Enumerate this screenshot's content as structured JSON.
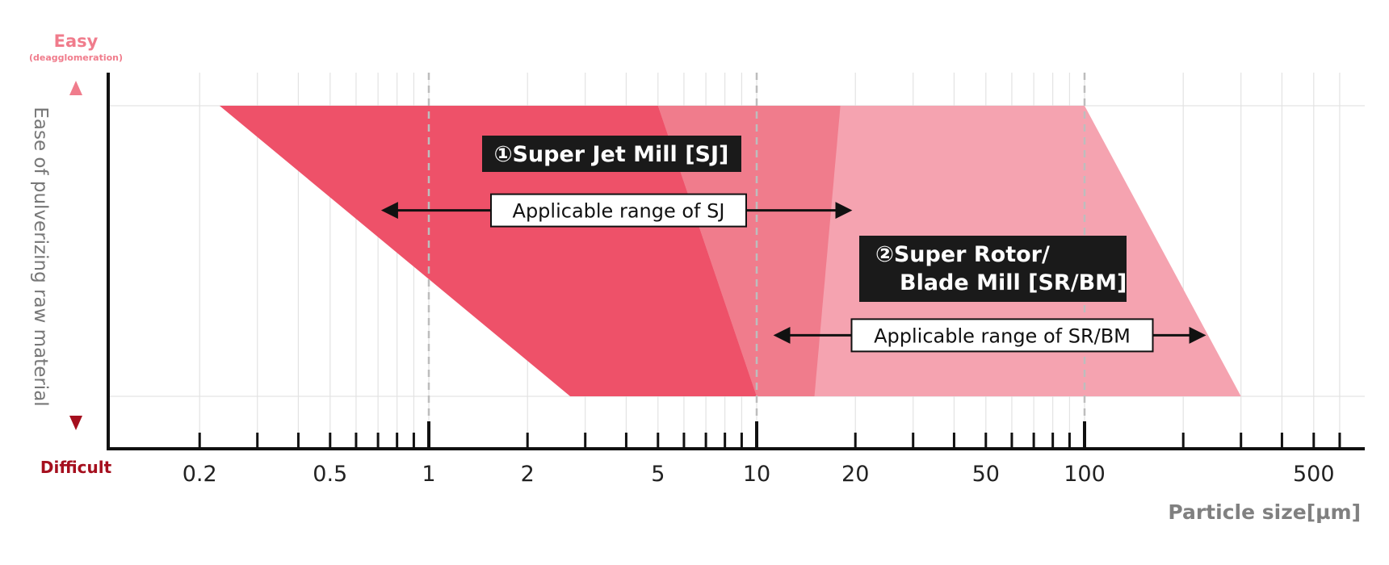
{
  "chart_data": {
    "type": "area",
    "xscale": "log",
    "xlabel": "Particle size[µm]",
    "ylabel": "Ease of pulverizing raw material",
    "y_top_label": "Easy",
    "y_top_sublabel": "(deagglomeration)",
    "y_bottom_label": "Difficult",
    "xlim": [
      0.1,
      700
    ],
    "ylim": [
      0,
      1
    ],
    "tick_labels": [
      {
        "value": 0.2,
        "label": "0.2"
      },
      {
        "value": 0.5,
        "label": "0.5"
      },
      {
        "value": 1,
        "label": "1"
      },
      {
        "value": 2,
        "label": "2"
      },
      {
        "value": 5,
        "label": "5"
      },
      {
        "value": 10,
        "label": "10"
      },
      {
        "value": 20,
        "label": "20"
      },
      {
        "value": 50,
        "label": "50"
      },
      {
        "value": 100,
        "label": "100"
      },
      {
        "value": 500,
        "label": "500"
      }
    ],
    "minor_ticks": [
      0.3,
      0.4,
      0.6,
      0.7,
      0.8,
      0.9,
      3,
      4,
      6,
      7,
      8,
      9,
      30,
      40,
      60,
      70,
      80,
      90,
      200,
      300,
      400,
      600
    ],
    "dashed_lines": [
      1,
      10,
      100
    ],
    "regions": [
      {
        "name": "SJ",
        "label": "①Super Jet Mill [SJ]",
        "color": "#ee5169",
        "top": [
          0.23,
          18
        ],
        "bottom": [
          2.7,
          15
        ]
      },
      {
        "name": "SR/BM",
        "label_line1": "②Super Rotor/",
        "label_line2": "Blade Mill [SR/BM]",
        "color": "#f5a3b0",
        "top": [
          5,
          100
        ],
        "bottom": [
          10,
          300
        ]
      }
    ],
    "overlap_color": "#f07c8c",
    "ranges": [
      {
        "label": "Applicable range of SJ",
        "from": 0.7,
        "to": 20,
        "level": 0.64
      },
      {
        "label": "Applicable range of SR/BM",
        "from": 11,
        "to": 240,
        "level": 0.21
      }
    ],
    "colors": {
      "axis": "#111111",
      "grid": "#e3e3e3",
      "dashed": "#bdbdbd",
      "easy": "#f07c8c",
      "difficult": "#a50f1e",
      "label_box": "#1a1a1a",
      "xlabel": "#808080"
    }
  }
}
